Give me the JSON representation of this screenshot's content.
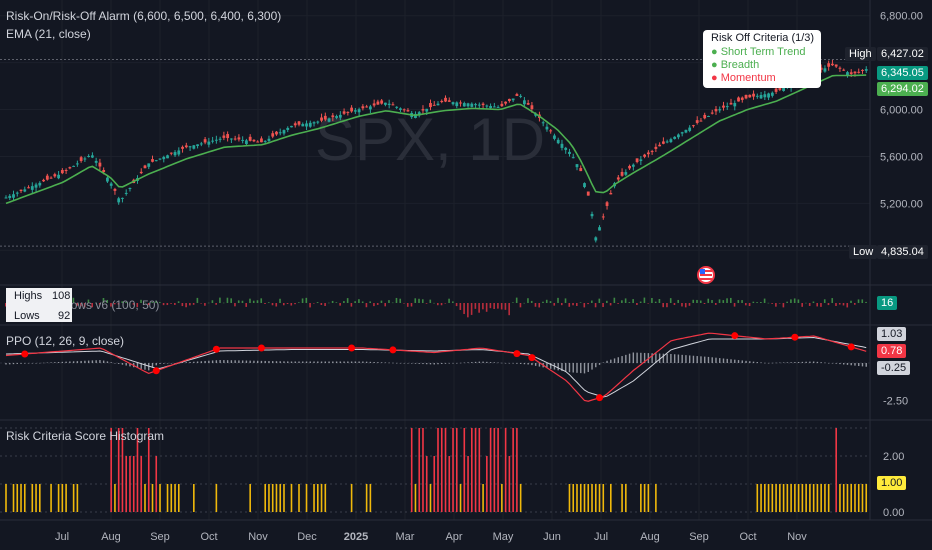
{
  "legend": {
    "indicator_title": "Risk-On/Risk-Off Alarm (6,600, 6,500, 6,400, 6,300)",
    "ema_title": "EMA (21, close)",
    "hilo_title": "Net Highs/Lows v6 (100, 50)",
    "hilo_highs_label": "Highs",
    "hilo_highs_value": "108",
    "hilo_lows_label": "Lows",
    "hilo_lows_value": "92",
    "ppo_title": "PPO (12, 26, 9, close)",
    "hist_title": "Risk Criteria Score Histogram"
  },
  "watermark": "SPX, 1D",
  "risk_tooltip": {
    "title": "Risk Off Criteria (1/3)",
    "items": [
      {
        "label": "Short Term Trend",
        "color": "#4caf50"
      },
      {
        "label": "Breadth",
        "color": "#4caf50"
      },
      {
        "label": "Momentum",
        "color": "#f23645"
      }
    ]
  },
  "price_tags": {
    "high_label": "High",
    "high_value": "6,427.02",
    "last_value": "6,345.05",
    "ema_value": "6,294.02",
    "low_label": "Low",
    "low_value": "4,835.04"
  },
  "pane_tags": {
    "hilo_value": "16",
    "ppo_signal": "1.03",
    "ppo_line": "0.78",
    "ppo_hist": "-0.25",
    "score_value": "1.00"
  },
  "colors": {
    "background": "#131722",
    "up_candle": "#26a69a",
    "down_candle": "#ef5350",
    "ema": "#4caf50",
    "ppo_line": "#f23645",
    "signal_line": "#d1d4dc",
    "score_low": "#f0b90b",
    "score_high": "#f23645"
  },
  "chart_data": {
    "type": "candlestick",
    "symbol": "SPX",
    "timeframe": "1D",
    "x_labels": [
      "Jul",
      "Aug",
      "Sep",
      "Oct",
      "Nov",
      "Dec",
      "2025",
      "Mar",
      "Apr",
      "May",
      "Jun",
      "Jul",
      "Aug",
      "Sep",
      "Oct",
      "Nov"
    ],
    "price_axis_ticks": [
      "6,800.00",
      "6,000.00",
      "5,600.00",
      "5,200.00"
    ],
    "ppo_axis_ticks": [
      "-2.50"
    ],
    "score_axis_ticks": [
      "2.00",
      "0.00"
    ],
    "price_range": [
      4700,
      6900
    ],
    "price_path": [
      [
        0,
        5250
      ],
      [
        12,
        5460
      ],
      [
        18,
        5620
      ],
      [
        22,
        5380
      ],
      [
        24,
        5220
      ],
      [
        30,
        5540
      ],
      [
        38,
        5680
      ],
      [
        46,
        5760
      ],
      [
        54,
        5720
      ],
      [
        60,
        5860
      ],
      [
        66,
        5900
      ],
      [
        70,
        5950
      ],
      [
        74,
        6000
      ],
      [
        80,
        6060
      ],
      [
        86,
        5960
      ],
      [
        92,
        6070
      ],
      [
        98,
        6050
      ],
      [
        104,
        6020
      ],
      [
        108,
        6130
      ],
      [
        112,
        5940
      ],
      [
        116,
        5750
      ],
      [
        119,
        5620
      ],
      [
        121,
        5470
      ],
      [
        123,
        5200
      ],
      [
        124,
        4900
      ],
      [
        126,
        5120
      ],
      [
        128,
        5370
      ],
      [
        132,
        5530
      ],
      [
        138,
        5700
      ],
      [
        144,
        5850
      ],
      [
        150,
        6000
      ],
      [
        156,
        6100
      ],
      [
        162,
        6150
      ],
      [
        168,
        6280
      ],
      [
        174,
        6380
      ],
      [
        178,
        6300
      ],
      [
        181,
        6345
      ]
    ],
    "ema_path": [
      [
        0,
        5200
      ],
      [
        12,
        5380
      ],
      [
        18,
        5520
      ],
      [
        22,
        5420
      ],
      [
        24,
        5330
      ],
      [
        30,
        5450
      ],
      [
        38,
        5580
      ],
      [
        46,
        5680
      ],
      [
        54,
        5700
      ],
      [
        60,
        5780
      ],
      [
        66,
        5840
      ],
      [
        70,
        5890
      ],
      [
        74,
        5940
      ],
      [
        80,
        5990
      ],
      [
        86,
        5950
      ],
      [
        92,
        5990
      ],
      [
        98,
        6010
      ],
      [
        104,
        6000
      ],
      [
        108,
        6050
      ],
      [
        112,
        5950
      ],
      [
        116,
        5830
      ],
      [
        119,
        5700
      ],
      [
        121,
        5560
      ],
      [
        123,
        5390
      ],
      [
        124,
        5300
      ],
      [
        126,
        5290
      ],
      [
        128,
        5360
      ],
      [
        132,
        5460
      ],
      [
        138,
        5600
      ],
      [
        144,
        5750
      ],
      [
        150,
        5900
      ],
      [
        156,
        6000
      ],
      [
        162,
        6070
      ],
      [
        168,
        6180
      ],
      [
        174,
        6290
      ],
      [
        178,
        6290
      ],
      [
        181,
        6294
      ]
    ],
    "high": 6427.02,
    "last": 6345.05,
    "ema_last": 6294.02,
    "low": 4835.04,
    "net_highs_lows": {
      "highs": 108,
      "lows": 92,
      "net": 16
    },
    "ppo": {
      "line": 0.78,
      "signal": 1.03,
      "histogram": -0.25
    },
    "risk_score_last": 1.0,
    "score_range": [
      0,
      3
    ]
  }
}
